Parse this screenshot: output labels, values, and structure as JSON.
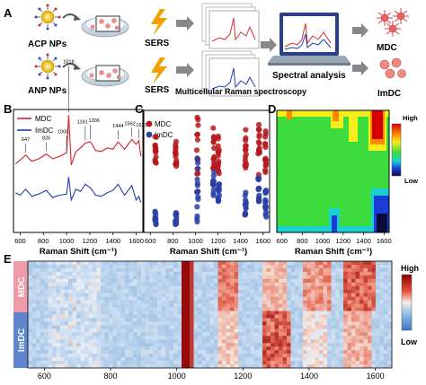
{
  "panelA": {
    "letter": "A",
    "acp_label": "ACP NPs",
    "anp_label": "ANP NPs",
    "sers1": "SERS",
    "sers2": "SERS",
    "multicellular": "Multicellular Raman spectroscopy",
    "spectral": "Spectral analysis",
    "mdc": "MDC",
    "imdc": "ImDC"
  },
  "panelB": {
    "letter": "B",
    "legend": [
      "MDC",
      "ImDC"
    ],
    "colors": [
      "#d42026",
      "#1f3fae"
    ],
    "xlabel": "Raman Shift (cm⁻¹)",
    "xticks": [
      600,
      800,
      1000,
      1200,
      1400,
      1600
    ],
    "peaks": [
      "647",
      "826",
      "1000",
      "1018",
      "1161",
      "1206",
      "1444",
      "1562",
      "1623"
    ]
  },
  "panelC": {
    "letter": "C",
    "legend": [
      "MDC",
      "ImDC"
    ],
    "colors": [
      "#b5171c",
      "#2a3fa6"
    ],
    "xlabel": "Raman Shift (cm⁻¹)",
    "xticks": [
      600,
      800,
      1000,
      1200,
      1400,
      1600
    ]
  },
  "panelD": {
    "letter": "D",
    "xlabel": "Raman Shift (cm⁻¹)",
    "xticks": [
      600,
      800,
      1000,
      1200,
      1400,
      1600
    ],
    "legend_high": "High",
    "legend_low": "Low"
  },
  "panelE": {
    "letter": "E",
    "row_labels": [
      "MDC",
      "ImDC"
    ],
    "xticks": [
      600,
      800,
      1000,
      1200,
      1400,
      1600
    ],
    "legend_high": "High",
    "legend_low": "Low"
  },
  "chart_data": [
    {
      "type": "line",
      "panel": "B",
      "xlabel": "Raman Shift (cm⁻¹)",
      "xlim": [
        550,
        1650
      ],
      "series": [
        {
          "name": "MDC",
          "x": [
            560,
            600,
            647,
            700,
            760,
            826,
            880,
            940,
            1000,
            1018,
            1040,
            1080,
            1120,
            1161,
            1206,
            1250,
            1300,
            1350,
            1400,
            1444,
            1500,
            1562,
            1600,
            1623,
            1640
          ],
          "y": [
            5.6,
            5.9,
            6.3,
            5.8,
            6.0,
            6.4,
            6.0,
            6.2,
            6.5,
            9.6,
            5.5,
            6.6,
            6.9,
            7.3,
            7.4,
            6.7,
            6.6,
            6.9,
            6.8,
            7.4,
            6.8,
            7.6,
            7.2,
            7.5,
            6.2
          ]
        },
        {
          "name": "ImDC",
          "x": [
            560,
            600,
            647,
            700,
            760,
            826,
            880,
            940,
            1000,
            1018,
            1040,
            1080,
            1120,
            1161,
            1206,
            1250,
            1300,
            1350,
            1400,
            1444,
            1500,
            1562,
            1600,
            1623,
            1640
          ],
          "y": [
            3.2,
            3.0,
            3.5,
            2.9,
            3.1,
            3.4,
            2.8,
            3.0,
            3.1,
            4.5,
            2.6,
            3.5,
            3.3,
            3.9,
            3.6,
            3.0,
            2.9,
            3.2,
            3.4,
            3.9,
            3.0,
            3.8,
            2.6,
            2.9,
            2.4
          ]
        }
      ]
    },
    {
      "type": "scatter",
      "panel": "C",
      "xlabel": "Raman Shift (cm⁻¹)",
      "xlim": [
        550,
        1650
      ],
      "series": [
        {
          "name": "MDC",
          "x": [
            647,
            826,
            1018,
            1161,
            1206,
            1444,
            1562,
            1623
          ],
          "ymin": [
            0.55,
            0.52,
            0.3,
            0.52,
            0.48,
            0.52,
            0.45,
            0.48
          ],
          "ymax": [
            0.8,
            0.82,
            0.98,
            0.9,
            0.85,
            0.88,
            0.9,
            0.85
          ]
        },
        {
          "name": "ImDC",
          "x": [
            647,
            826,
            1018,
            1161,
            1206,
            1444,
            1562,
            1623
          ],
          "ymin": [
            0.05,
            0.05,
            0.05,
            0.3,
            0.25,
            0.12,
            0.25,
            0.12
          ],
          "ymax": [
            0.18,
            0.16,
            0.68,
            0.5,
            0.42,
            0.35,
            0.5,
            0.35
          ]
        }
      ]
    },
    {
      "type": "heatmap",
      "panel": "D",
      "xlabel": "Raman Shift (cm⁻¹)",
      "xlim": [
        550,
        1650
      ],
      "legend": [
        "High",
        "Low"
      ]
    },
    {
      "type": "heatmap",
      "panel": "E",
      "xlim": [
        550,
        1650
      ],
      "groups": [
        "MDC",
        "ImDC"
      ],
      "legend": [
        "High",
        "Low"
      ]
    }
  ]
}
